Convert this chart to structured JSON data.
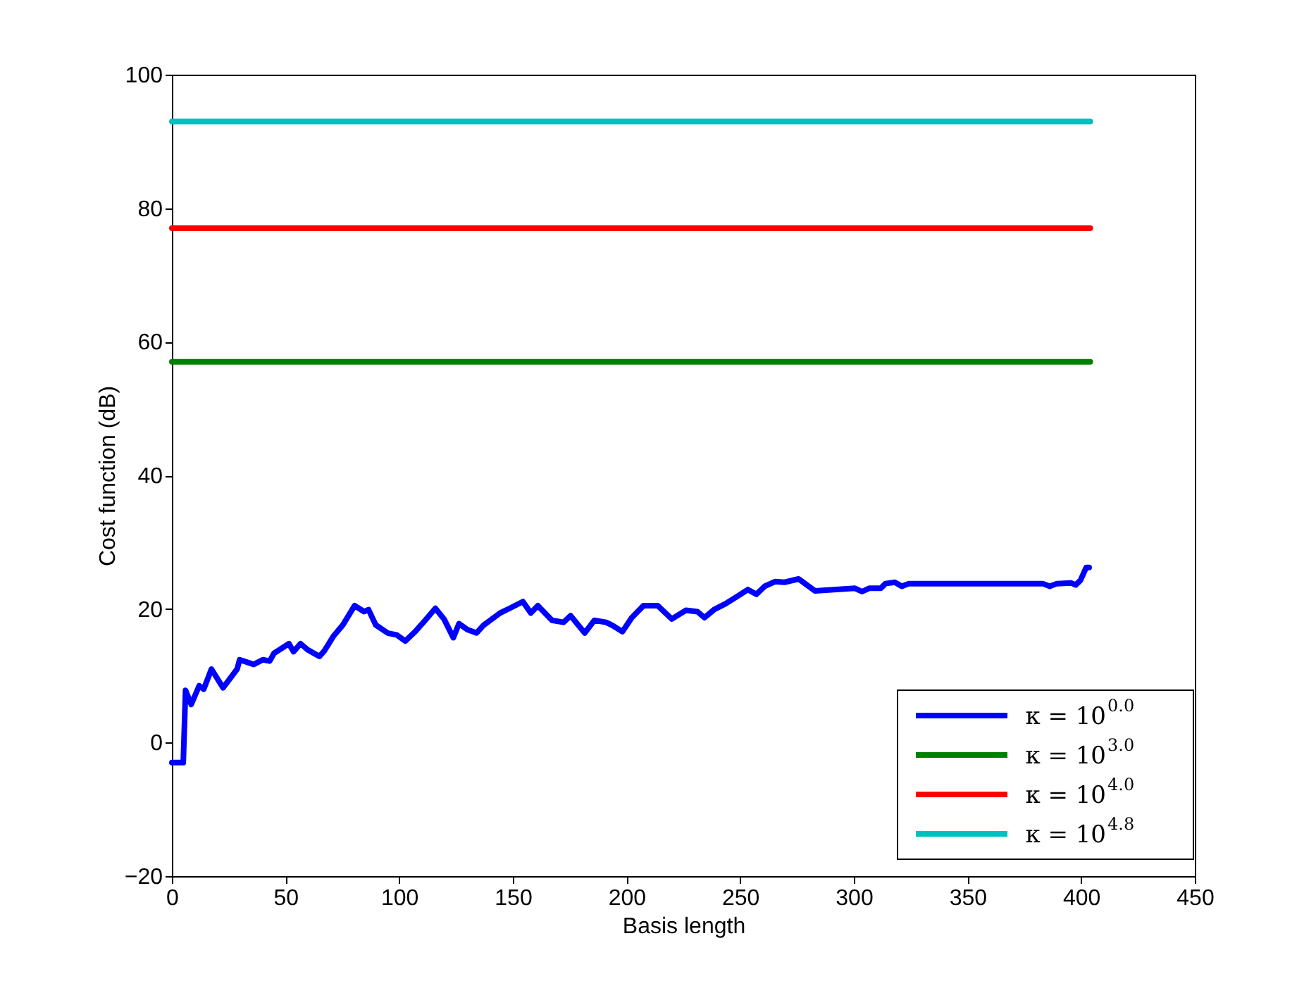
{
  "chart_data": {
    "type": "line",
    "xlabel": "Basis length",
    "ylabel": "Cost function (dB)",
    "xlim": [
      0,
      450
    ],
    "xticks": [
      0,
      50,
      100,
      150,
      200,
      250,
      300,
      350,
      400,
      450
    ],
    "ylim": [
      -20,
      100
    ],
    "yticks": [
      -20,
      0,
      20,
      40,
      60,
      80,
      100
    ],
    "grid": false,
    "legend": "bottom right",
    "line_style": "solid",
    "marker": "none",
    "series": [
      {
        "name": "κ = 10$^{0.0}$",
        "color": "#0000ff",
        "x": [
          0,
          5,
          6,
          8.5,
          12,
          14,
          17.4,
          22.5,
          28.7,
          29.8,
          36,
          40,
          43,
          45,
          51.5,
          53.5,
          56.6,
          59.7,
          64.9,
          67,
          71,
          75.2,
          80.4,
          84.5,
          86.5,
          89.7,
          94.9,
          99,
          102.7,
          107,
          111.4,
          115.9,
          119.7,
          123.8,
          126.3,
          130,
          134,
          137.2,
          144.4,
          148.6,
          154.4,
          157.9,
          161,
          167.2,
          172.3,
          175.4,
          181.6,
          185.8,
          191,
          194,
          198.2,
          202.3,
          207.5,
          213.7,
          219.9,
          226.1,
          231.2,
          234.3,
          238.5,
          243.6,
          248.8,
          253.4,
          257.1,
          260.8,
          265.3,
          269.5,
          275.7,
          282.9,
          300.5,
          303.6,
          306.7,
          311.8,
          313.9,
          318,
          321.1,
          324.2,
          383.1,
          386.2,
          389.3,
          395.5,
          397.6,
          399.7,
          402.2,
          403.5
        ],
        "values": [
          -3,
          -3,
          7.8,
          5.7,
          8.5,
          8,
          11,
          8.2,
          11,
          12.4,
          11.7,
          12.4,
          12.2,
          13.4,
          14.8,
          13.6,
          14.8,
          13.9,
          12.9,
          13.7,
          15.9,
          17.6,
          20.5,
          19.6,
          19.9,
          17.6,
          16.4,
          16.1,
          15.2,
          16.6,
          18.3,
          20.1,
          18.5,
          15.7,
          17.8,
          16.9,
          16.4,
          17.6,
          19.4,
          20.1,
          21.1,
          19.4,
          20.5,
          18.3,
          18,
          19,
          16.4,
          18.3,
          18,
          17.5,
          16.6,
          18.7,
          20.5,
          20.5,
          18.5,
          19.8,
          19.6,
          18.7,
          19.9,
          20.8,
          21.9,
          22.9,
          22.2,
          23.4,
          24.1,
          24,
          24.5,
          22.7,
          23.1,
          22.6,
          23.1,
          23.1,
          23.8,
          24,
          23.4,
          23.8,
          23.8,
          23.4,
          23.8,
          23.9,
          23.6,
          24.3,
          26.2,
          26.2
        ]
      },
      {
        "name": "κ = 10$^{3.0}$",
        "color": "#008000",
        "x": [
          0,
          404
        ],
        "values": [
          57,
          57
        ]
      },
      {
        "name": "κ = 10$^{4.0}$",
        "color": "#ff0000",
        "x": [
          0,
          404
        ],
        "values": [
          77,
          77
        ]
      },
      {
        "name": "κ = 10$^{4.8}$",
        "color": "#00bfbf",
        "x": [
          0,
          404
        ],
        "values": [
          93,
          93
        ]
      }
    ]
  }
}
